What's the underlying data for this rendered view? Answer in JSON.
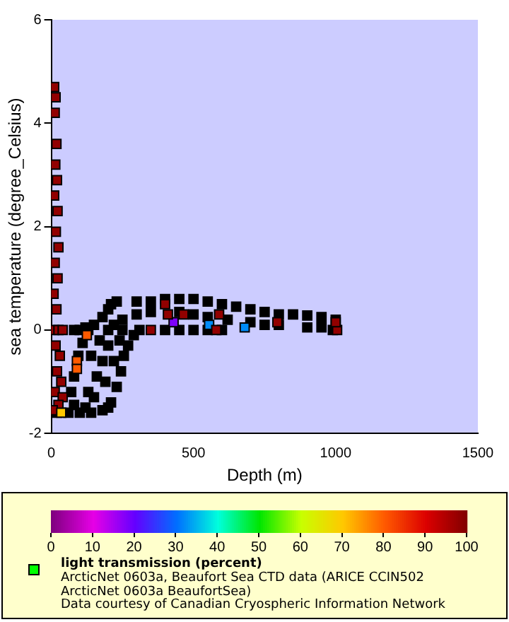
{
  "chart_data": {
    "type": "scatter",
    "xlabel": "Depth (m)",
    "ylabel": "sea temperature (degree_Celsius)",
    "clabel": "light transmission (percent)",
    "xlim": [
      0,
      1500
    ],
    "xticks": [
      0,
      500,
      1000,
      1500
    ],
    "ylim": [
      -2,
      6
    ],
    "yticks": [
      -2,
      0,
      2,
      4,
      6
    ],
    "clim": [
      0,
      100
    ],
    "cticks": [
      0,
      10,
      20,
      30,
      40,
      50,
      60,
      70,
      80,
      90,
      100
    ],
    "marker": "square",
    "grid": false,
    "annotations": [
      "ArcticNet 0603a, Beaufort Sea CTD data (ARICE CCIN502",
      "ArcticNet 0603a BeaufortSea)",
      "Data courtesy of Canadian Cryospheric Information Network"
    ],
    "x": [
      20,
      60,
      100,
      140,
      180,
      200,
      80,
      120,
      70,
      80,
      95,
      110,
      130,
      150,
      180,
      200,
      210,
      210,
      230,
      245,
      255,
      270,
      290,
      310,
      130,
      160,
      150,
      180,
      200,
      190,
      220,
      170,
      220,
      240,
      250,
      140,
      230,
      300,
      350,
      400,
      450,
      500,
      550,
      600,
      650,
      700,
      750,
      800,
      850,
      900,
      950,
      1000,
      300,
      350,
      450,
      500,
      550,
      620,
      700,
      750,
      800,
      900,
      950,
      990,
      200,
      250,
      400,
      450,
      500,
      550,
      600,
      120,
      100,
      80,
      10,
      15,
      12,
      18,
      14,
      20,
      10,
      22,
      16,
      25,
      12,
      22,
      8,
      18,
      10,
      25,
      40,
      15,
      30,
      20,
      35,
      12,
      40,
      25,
      5,
      90,
      90,
      125,
      35,
      430,
      680,
      555,
      400,
      410,
      465,
      590,
      795,
      1005,
      1000,
      580,
      350
    ],
    "values": [
      -1.6,
      -1.6,
      -1.6,
      -1.6,
      -1.55,
      -1.5,
      -1.45,
      -1.5,
      -1.2,
      -0.9,
      -0.5,
      -0.25,
      0,
      0.1,
      0.25,
      0.4,
      0.5,
      -1.4,
      -1.1,
      -0.8,
      -0.5,
      -0.3,
      -0.1,
      0,
      -1.2,
      -0.9,
      -1.3,
      -0.6,
      -0.3,
      -1,
      -0.6,
      -0.2,
      0.1,
      -0.2,
      0.2,
      -0.5,
      0.55,
      0.55,
      0.55,
      0.6,
      0.6,
      0.6,
      0.55,
      0.5,
      0.45,
      0.4,
      0.35,
      0.3,
      0.3,
      0.28,
      0.25,
      0.2,
      0.3,
      0.35,
      0.35,
      0.3,
      0.25,
      0.2,
      0.15,
      0.1,
      0.1,
      0.05,
      0.05,
      0,
      0,
      0,
      0,
      0,
      0,
      0,
      0,
      0.05,
      0,
      0,
      4.7,
      4.5,
      4.2,
      3.6,
      3.2,
      2.9,
      2.6,
      2.3,
      1.9,
      1.6,
      1.3,
      1,
      0.7,
      0.4,
      0,
      0,
      0,
      -0.3,
      -0.5,
      -0.8,
      -1,
      -1.2,
      -1.3,
      -1.45,
      -1.55,
      -0.6,
      -0.75,
      -0.1,
      -1.6,
      0.15,
      0.05,
      0.1,
      0.5,
      0.3,
      0.3,
      0.3,
      0.15,
      0,
      0.15,
      0,
      0
    ],
    "cvalues": [
      null,
      null,
      null,
      null,
      null,
      null,
      null,
      null,
      null,
      null,
      null,
      null,
      null,
      null,
      null,
      null,
      null,
      null,
      null,
      null,
      null,
      null,
      null,
      null,
      null,
      null,
      null,
      null,
      null,
      null,
      null,
      null,
      null,
      null,
      null,
      null,
      null,
      null,
      null,
      null,
      null,
      null,
      null,
      null,
      null,
      null,
      null,
      null,
      null,
      null,
      null,
      null,
      null,
      null,
      null,
      null,
      null,
      null,
      null,
      null,
      null,
      null,
      null,
      null,
      null,
      null,
      null,
      null,
      null,
      null,
      null,
      null,
      null,
      null,
      98,
      98,
      98,
      98,
      98,
      98,
      98,
      98,
      98,
      98,
      98,
      98,
      98,
      98,
      98,
      98,
      98,
      98,
      98,
      98,
      98,
      98,
      98,
      98,
      98,
      80,
      80,
      80,
      70,
      18,
      32,
      32,
      98,
      98,
      98,
      98,
      98,
      98,
      98,
      98,
      98
    ]
  }
}
